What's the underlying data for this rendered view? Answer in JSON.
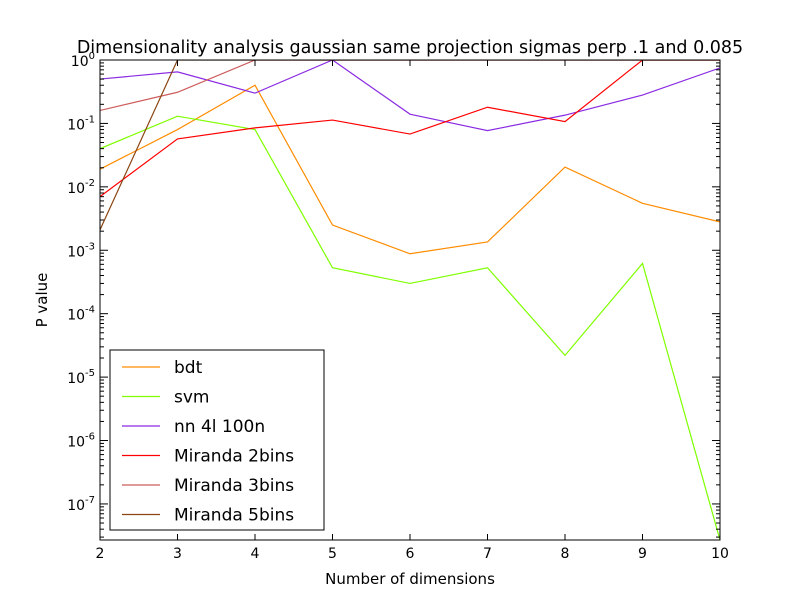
{
  "chart_data": {
    "type": "line",
    "title": "Dimensionality analysis gaussian same projection sigmas perp .1 and 0.085",
    "xlabel": "Number of dimensions",
    "ylabel": "P value",
    "xlim": [
      2,
      10
    ],
    "ylim": [
      2.7e-08,
      1
    ],
    "yscale": "log",
    "x_ticks": [
      2,
      3,
      4,
      5,
      6,
      7,
      8,
      9,
      10
    ],
    "y_ticks": [
      {
        "value": 1e-07,
        "base": "10",
        "exp": "-7"
      },
      {
        "value": 1e-06,
        "base": "10",
        "exp": "-6"
      },
      {
        "value": 1e-05,
        "base": "10",
        "exp": "-5"
      },
      {
        "value": 0.0001,
        "base": "10",
        "exp": "-4"
      },
      {
        "value": 0.001,
        "base": "10",
        "exp": "-3"
      },
      {
        "value": 0.01,
        "base": "10",
        "exp": "-2"
      },
      {
        "value": 0.1,
        "base": "10",
        "exp": "-1"
      },
      {
        "value": 1,
        "base": "10",
        "exp": "0"
      }
    ],
    "grid": false,
    "legend_position": "bottom-left",
    "x": [
      2,
      3,
      4,
      5,
      6,
      7,
      8,
      9,
      10
    ],
    "series": [
      {
        "name": "bdt",
        "color": "#ff8c00",
        "values": [
          0.019,
          0.08,
          0.4,
          0.0025,
          0.00088,
          0.00135,
          0.0205,
          0.0055,
          0.0028
        ]
      },
      {
        "name": "svm",
        "color": "#7fff00",
        "values": [
          0.04,
          0.13,
          0.08,
          0.00053,
          0.0003,
          0.00053,
          2.2e-05,
          0.00062,
          2.7e-08
        ]
      },
      {
        "name": "nn 4l 100n",
        "color": "#8a2be2",
        "values": [
          0.5,
          0.65,
          0.3,
          1.0,
          0.14,
          0.077,
          0.135,
          0.28,
          0.75
        ]
      },
      {
        "name": "Miranda 2bins",
        "color": "#ff0000",
        "values": [
          0.007,
          0.057,
          0.085,
          0.113,
          0.068,
          0.18,
          0.107,
          1.0,
          1.0
        ]
      },
      {
        "name": "Miranda 3bins",
        "color": "#cd5c5c",
        "values": [
          0.16,
          0.31,
          1.0,
          1.0,
          1.0,
          1.0,
          1.0,
          1.0,
          1.0
        ]
      },
      {
        "name": "Miranda 5bins",
        "color": "#8b4513",
        "values": [
          0.0021,
          1.0,
          1.0,
          1.0,
          1.0,
          1.0,
          1.0,
          1.0,
          1.0
        ]
      }
    ]
  }
}
